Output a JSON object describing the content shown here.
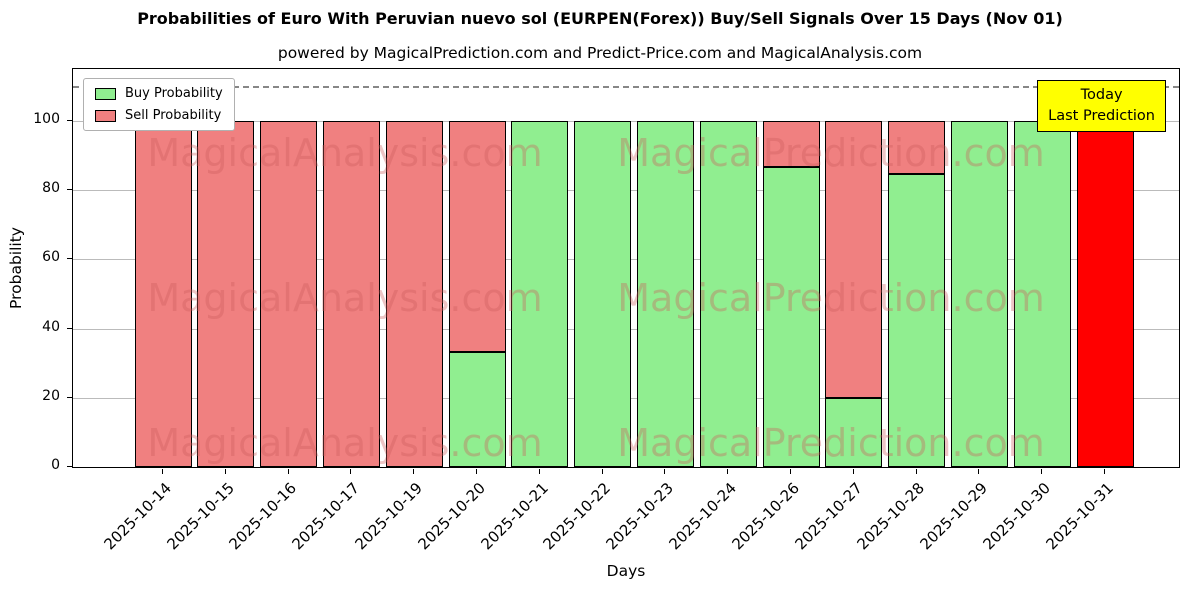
{
  "figure": {
    "title": "Probabilities of Euro With Peruvian nuevo sol (EURPEN(Forex)) Buy/Sell Signals Over 15 Days (Nov 01)",
    "subtitle": "powered by MagicalPrediction.com and Predict-Price.com and MagicalAnalysis.com",
    "xlabel": "Days",
    "ylabel": "Probability"
  },
  "legend": {
    "items": [
      {
        "label": "Buy Probability",
        "color": "#90ee90"
      },
      {
        "label": "Sell Probability",
        "color": "#f08080"
      }
    ]
  },
  "annotation": {
    "lines": [
      "Today",
      "Last Prediction"
    ],
    "bg": "#ffff00"
  },
  "watermarks": {
    "left": "MagicalAnalysis.com",
    "right": "MagicalPrediction.com",
    "color": "#cd5c5c"
  },
  "chart_data": {
    "type": "bar",
    "stacked": true,
    "title": "Probabilities of Euro With Peruvian nuevo sol (EURPEN(Forex)) Buy/Sell Signals Over 15 Days (Nov 01)",
    "xlabel": "Days",
    "ylabel": "Probability",
    "ylim": [
      0,
      115
    ],
    "yticks": [
      0,
      20,
      40,
      60,
      80,
      100
    ],
    "dashed_guide_y": 110,
    "grid": true,
    "legend_position": "upper left",
    "categories": [
      "2025-10-14",
      "2025-10-15",
      "2025-10-16",
      "2025-10-17",
      "2025-10-19",
      "2025-10-20",
      "2025-10-21",
      "2025-10-22",
      "2025-10-23",
      "2025-10-24",
      "2025-10-26",
      "2025-10-27",
      "2025-10-28",
      "2025-10-29",
      "2025-10-30",
      "2025-10-31"
    ],
    "series": [
      {
        "name": "Buy Probability",
        "color": "#90ee90",
        "values": [
          0,
          0,
          0,
          0,
          0,
          33.33,
          100,
          100,
          100,
          100,
          86.67,
          20,
          84.6,
          100,
          100,
          0
        ]
      },
      {
        "name": "Sell Probability",
        "color": "#f08080",
        "values": [
          100,
          100,
          100,
          100,
          100,
          66.67,
          0,
          0,
          0,
          0,
          13.33,
          80,
          15.4,
          0,
          0,
          100
        ]
      }
    ],
    "today": {
      "category": "2025-10-31",
      "index": 15,
      "color": "#ff0000"
    }
  }
}
